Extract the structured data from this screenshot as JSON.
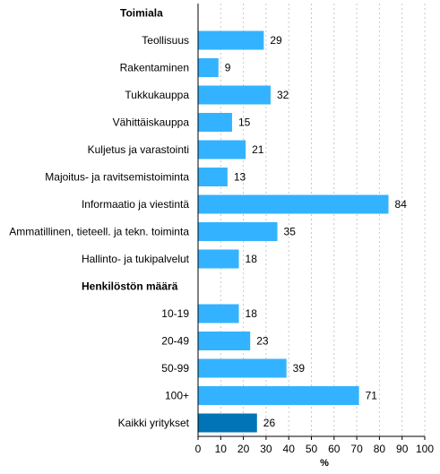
{
  "chart_data": {
    "type": "bar",
    "orientation": "horizontal",
    "groups": [
      {
        "heading": "Toimiala",
        "categories": [
          "Teollisuus",
          "Rakentaminen",
          "Tukkukauppa",
          "Vähittäiskauppa",
          "Kuljetus ja varastointi",
          "Majoitus- ja ravitsemistoiminta",
          "Informaatio ja viestintä",
          "Ammatillinen, tieteell. ja tekn. toiminta",
          "Hallinto- ja tukipalvelut"
        ],
        "values": [
          29,
          9,
          32,
          15,
          21,
          13,
          84,
          35,
          18
        ]
      },
      {
        "heading": "Henkilöstön määrä",
        "categories": [
          "10-19",
          "20-49",
          "50-99",
          "100+"
        ],
        "values": [
          18,
          23,
          39,
          71
        ]
      }
    ],
    "total": {
      "category": "Kaikki yritykset",
      "value": 26
    },
    "xlabel": "%",
    "xlim": [
      0,
      100
    ],
    "xticks": [
      0,
      10,
      20,
      30,
      40,
      50,
      60,
      70,
      80,
      90,
      100
    ],
    "grid": "vertical dashed",
    "colors": {
      "bar": "#33b3ff",
      "total": "#0074b7",
      "grid": "#c8c8c8",
      "axis": "#000000"
    }
  }
}
